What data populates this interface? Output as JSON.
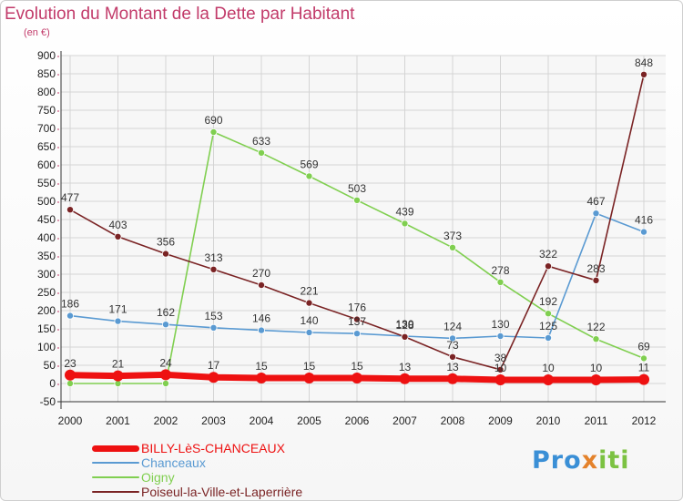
{
  "title": "Evolution du Montant de la Dette par Habitant",
  "subtitle": "(en €)",
  "logo": {
    "letters": [
      {
        "ch": "P",
        "color": "#3a8fd6"
      },
      {
        "ch": "r",
        "color": "#3a8fd6"
      },
      {
        "ch": "o",
        "color": "#3a8fd6"
      },
      {
        "ch": "x",
        "color": "#e4822b"
      },
      {
        "ch": "i",
        "color": "#7cc242"
      },
      {
        "ch": "t",
        "color": "#7cc242"
      },
      {
        "ch": "i",
        "color": "#7cc242"
      }
    ]
  },
  "chart_data": {
    "type": "line",
    "x": [
      "2000",
      "2001",
      "2002",
      "2003",
      "2004",
      "2005",
      "2006",
      "2007",
      "2008",
      "2009",
      "2010",
      "2011",
      "2012"
    ],
    "ylim": [
      -50,
      900
    ],
    "yticks": [
      -50,
      0,
      50,
      100,
      150,
      200,
      250,
      300,
      350,
      400,
      450,
      500,
      550,
      600,
      650,
      700,
      750,
      800,
      850,
      900
    ],
    "grid": true,
    "legend_position": "bottom-left",
    "series": [
      {
        "name": "Oigny",
        "color": "#80cf50",
        "values": [
          0,
          0,
          0,
          690,
          633,
          569,
          503,
          439,
          373,
          278,
          192,
          122,
          69
        ],
        "labels": [
          null,
          null,
          null,
          "690",
          "633",
          "569",
          "503",
          "439",
          "373",
          "278",
          "192",
          "122",
          "69"
        ]
      },
      {
        "name": "Chanceaux",
        "color": "#5a9ad2",
        "values": [
          186,
          171,
          162,
          153,
          146,
          140,
          137,
          130,
          124,
          130,
          125,
          467,
          416
        ],
        "labels": [
          "186",
          "171",
          "162",
          "153",
          "146",
          "140",
          "137",
          "130",
          "124",
          "130",
          "125",
          "467",
          "416"
        ]
      },
      {
        "name": "Poiseul-la-Ville-et-Laperrière",
        "color": "#7a2324",
        "values": [
          477,
          403,
          356,
          313,
          270,
          221,
          176,
          128,
          73,
          38,
          322,
          283,
          848
        ],
        "labels": [
          "477",
          "403",
          "356",
          "313",
          "270",
          "221",
          "176",
          "128",
          "73",
          "38",
          "322",
          "283",
          "848"
        ]
      },
      {
        "name": "BILLY-LèS-CHANCEAUX",
        "color": "#ee1111",
        "values": [
          23,
          21,
          24,
          17,
          15,
          15,
          15,
          13,
          13,
          10,
          10,
          10,
          11
        ],
        "labels": [
          "23",
          "21",
          "24",
          "17",
          "15",
          "15",
          "15",
          "13",
          "13",
          "10",
          "10",
          "10",
          "11"
        ]
      }
    ]
  },
  "legend": [
    {
      "name": "BILLY-LèS-CHANCEAUX",
      "color": "#ee1111",
      "thickness": 7
    },
    {
      "name": "Chanceaux",
      "color": "#5a9ad2",
      "thickness": 2
    },
    {
      "name": "Oigny",
      "color": "#80cf50",
      "thickness": 2
    },
    {
      "name": "Poiseul-la-Ville-et-Laperrière",
      "color": "#7a2324",
      "thickness": 2
    }
  ]
}
